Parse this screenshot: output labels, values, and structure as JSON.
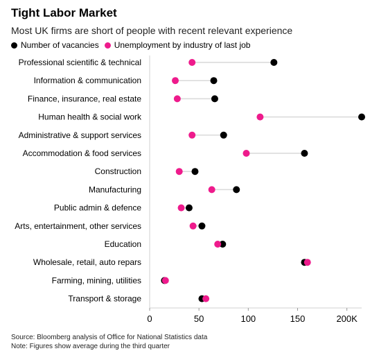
{
  "title": "Tight Labor Market",
  "subtitle": "Most UK firms are short of people with recent relevant experience",
  "legend": [
    {
      "label": "Number of vacancies",
      "color": "#000000"
    },
    {
      "label": "Unemployment by industry of last job",
      "color": "#ee1b8c"
    }
  ],
  "footer": {
    "source": "Source: Bloomberg analysis of Office for National Statistics data",
    "note": "Note: Figures show average during the third quarter"
  },
  "chart_data": {
    "type": "dot",
    "xlim": [
      0,
      215
    ],
    "x_ticks": [
      0,
      50,
      100,
      150,
      200
    ],
    "x_tick_labels": [
      "0",
      "50",
      "100",
      "150",
      "200K"
    ],
    "categories": [
      "Professional scientific & technical",
      "Information & communication",
      "Finance, insurance, real estate",
      "Human health & social work",
      "Administrative & support services",
      "Accommodation & food services",
      "Construction",
      "Manufacturing",
      "Public admin & defence",
      "Arts, entertainment, other services",
      "Education",
      "Wholesale, retail, auto repars",
      "Farming, mining, utilities",
      "Transport & storage"
    ],
    "series": [
      {
        "name": "Number of vacancies",
        "color": "#000000",
        "values": [
          126,
          65,
          66,
          215,
          75,
          157,
          46,
          88,
          40,
          53,
          74,
          157,
          15,
          53
        ]
      },
      {
        "name": "Unemployment by industry of last job",
        "color": "#ee1b8c",
        "values": [
          43,
          26,
          28,
          112,
          43,
          98,
          30,
          63,
          32,
          44,
          69,
          160,
          16,
          57
        ]
      }
    ]
  }
}
